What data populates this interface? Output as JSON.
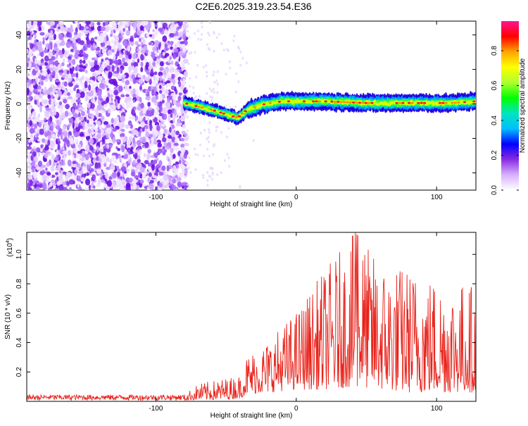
{
  "title": "C2E6.2025.319.23.54.E36",
  "chart_data": [
    {
      "type": "heatmap",
      "xlabel": "Height of straight line (km)",
      "ylabel": "Frequency (Hz)",
      "xlim": [
        -192,
        128
      ],
      "ylim": [
        -50,
        48
      ],
      "xticks": [
        -100,
        0,
        100
      ],
      "yticks": [
        -40,
        -20,
        0,
        20,
        40
      ],
      "colorbar": {
        "label": "Normalized spectral amplitude",
        "range": [
          0,
          0.97
        ],
        "ticks": [
          "0.0",
          "0.2",
          "0.4",
          "0.6",
          "0.8"
        ],
        "colors": [
          "#ffffff",
          "#d8b0ff",
          "#8a2be2",
          "#0000ff",
          "#00bfff",
          "#00e5c0",
          "#00ff00",
          "#adff2f",
          "#ffff00",
          "#ffa500",
          "#ff0000",
          "#ff1493"
        ]
      },
      "noise_region_km": [
        -192,
        -78
      ],
      "signal_track": [
        {
          "x": -80,
          "f": 0.5
        },
        {
          "x": -70,
          "f": -1.5
        },
        {
          "x": -60,
          "f": -3.5
        },
        {
          "x": -50,
          "f": -6
        },
        {
          "x": -42,
          "f": -8
        },
        {
          "x": -35,
          "f": -3.5
        },
        {
          "x": -25,
          "f": -0.5
        },
        {
          "x": -10,
          "f": 1.5
        },
        {
          "x": 0,
          "f": 1.5
        },
        {
          "x": 20,
          "f": 1.5
        },
        {
          "x": 50,
          "f": 0.5
        },
        {
          "x": 80,
          "f": 0.5
        },
        {
          "x": 110,
          "f": 0.5
        },
        {
          "x": 128,
          "f": 1.5
        }
      ]
    },
    {
      "type": "line",
      "xlabel": "Height of straight line (km)",
      "ylabel": "SNR (10 * v/v)",
      "scale_label": "(x10",
      "scale_exp": "4",
      "scale_close": ")",
      "xlim": [
        -192,
        128
      ],
      "ylim": [
        0,
        1.15
      ],
      "xticks": [
        -100,
        0,
        100
      ],
      "yticks": [
        "0.2",
        "0.4",
        "0.6",
        "0.8",
        "1.0"
      ],
      "series": [
        {
          "name": "SNR",
          "color": "#e8231b",
          "envelope": [
            {
              "x": -192,
              "lo": 0.005,
              "hi": 0.045
            },
            {
              "x": -80,
              "lo": 0.005,
              "hi": 0.045
            },
            {
              "x": -70,
              "lo": 0.01,
              "hi": 0.12
            },
            {
              "x": -55,
              "lo": 0.01,
              "hi": 0.15
            },
            {
              "x": -40,
              "lo": 0.02,
              "hi": 0.18
            },
            {
              "x": -35,
              "lo": 0.05,
              "hi": 0.32
            },
            {
              "x": -20,
              "lo": 0.06,
              "hi": 0.42
            },
            {
              "x": 0,
              "lo": 0.08,
              "hi": 0.62
            },
            {
              "x": 20,
              "lo": 0.08,
              "hi": 0.9
            },
            {
              "x": 42,
              "lo": 0.1,
              "hi": 1.15
            },
            {
              "x": 60,
              "lo": 0.08,
              "hi": 0.95
            },
            {
              "x": 80,
              "lo": 0.06,
              "hi": 0.92
            },
            {
              "x": 100,
              "lo": 0.06,
              "hi": 0.85
            },
            {
              "x": 128,
              "lo": 0.06,
              "hi": 0.8
            }
          ]
        }
      ]
    }
  ]
}
